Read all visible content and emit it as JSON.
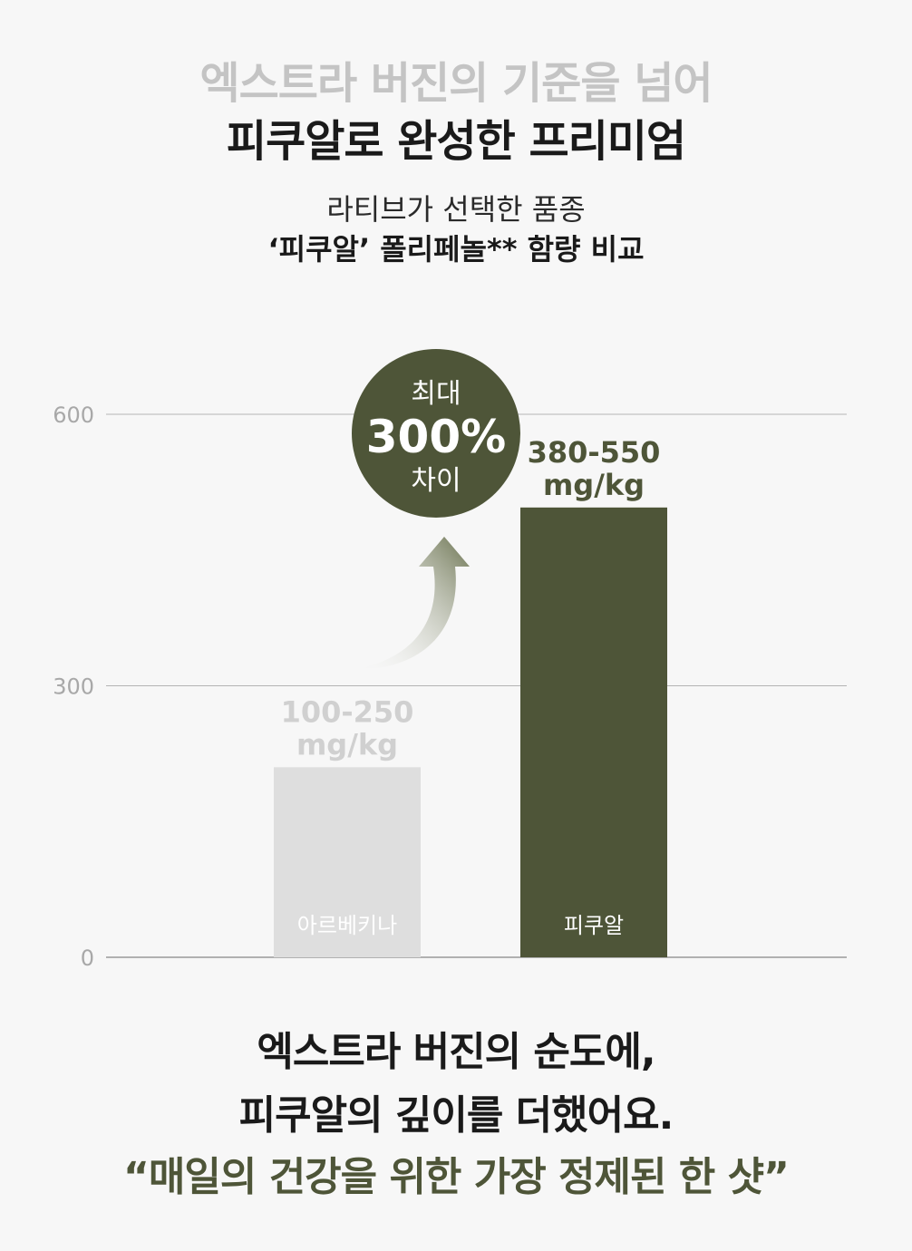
{
  "header": {
    "title_line1": "엑스트라 버진의 기준을 넘어",
    "title_line2": "피쿠알로 완성한 프리미엄",
    "subtitle_line1": "라티브가 선택한 품종",
    "subtitle_line2": "‘피쿠알’ 폴리페놀** 함량 비교"
  },
  "badge": {
    "top": "최대",
    "value": "300%",
    "bottom": "차이",
    "color": "#4e5538"
  },
  "chart_data": {
    "type": "bar",
    "categories": [
      "아르베키나",
      "피쿠알"
    ],
    "ranges": [
      [
        100,
        250
      ],
      [
        380,
        550
      ]
    ],
    "values": [
      210,
      497
    ],
    "data_labels": [
      [
        "100-250",
        "mg/kg"
      ],
      [
        "380-550",
        "mg/kg"
      ]
    ],
    "colors": [
      "#dedede",
      "#4e5538"
    ],
    "label_colors": [
      "#d0d0d0",
      "#4e5538"
    ],
    "yticks": [
      "0",
      "300",
      "600"
    ],
    "ylim": [
      0,
      600
    ],
    "grid": true
  },
  "footer": {
    "line1": "엑스트라 버진의 순도에,",
    "line2": "피쿠알의 깊이를 더했어요.",
    "line3": "“매일의 건강을 위한 가장 정제된 한 샷”"
  }
}
